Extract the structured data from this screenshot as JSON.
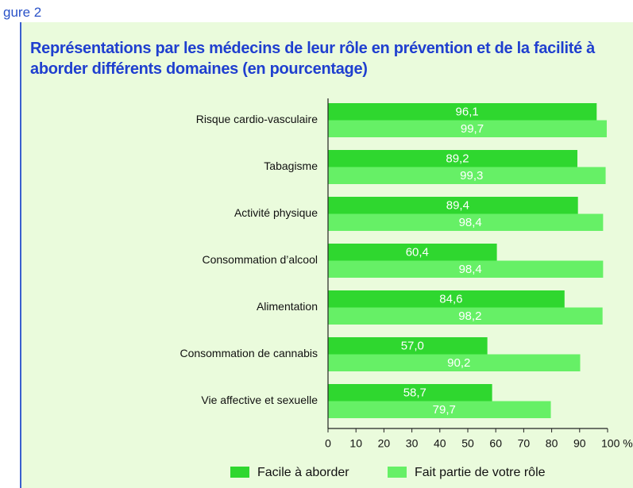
{
  "figure_label": "gure 2",
  "chart_data": {
    "type": "hbar",
    "title": "Représentations par les médecins de leur rôle en prévention et de la facilité à aborder différents domaines (en pourcentage)",
    "categories": [
      "Risque cardio-vasculaire",
      "Tabagisme",
      "Activité physique",
      "Consommation d’alcool",
      "Alimentation",
      "Consommation de cannabis",
      "Vie affective et sexuelle"
    ],
    "series": [
      {
        "name": "Facile à aborder",
        "color": "#2fd72f",
        "values": [
          96.1,
          89.2,
          89.4,
          60.4,
          84.6,
          57.0,
          58.7
        ],
        "value_labels": [
          "96,1",
          "89,2",
          "89,4",
          "60,4",
          "84,6",
          "57,0",
          "58,7"
        ]
      },
      {
        "name": "Fait partie de votre rôle",
        "color": "#66f066",
        "values": [
          99.7,
          99.3,
          98.4,
          98.4,
          98.2,
          90.2,
          79.7
        ],
        "value_labels": [
          "99,7",
          "99,3",
          "98,4",
          "98,4",
          "98,2",
          "90,2",
          "79,7"
        ]
      }
    ],
    "xlim": [
      0,
      100
    ],
    "xticks": [
      0,
      10,
      20,
      30,
      40,
      50,
      60,
      70,
      80,
      90,
      {
        "value": 100,
        "label": "100 %"
      }
    ],
    "legend": "bottom"
  }
}
